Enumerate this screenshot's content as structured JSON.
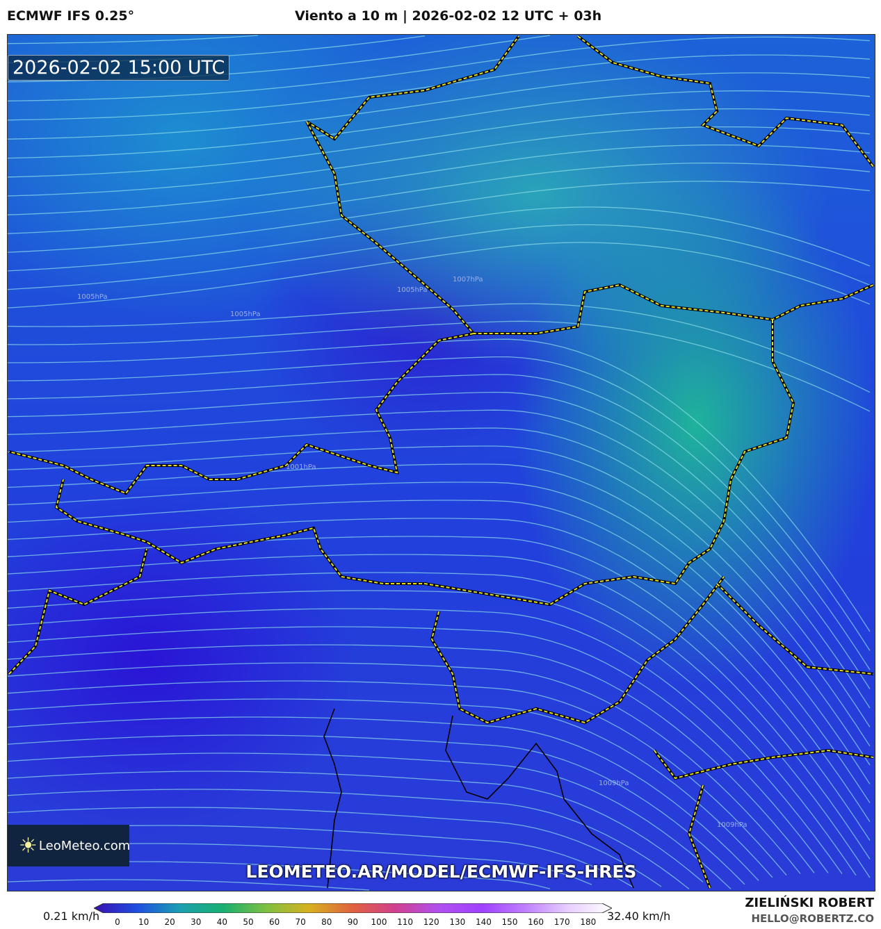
{
  "header": {
    "model": "ECMWF IFS 0.25°",
    "title": "Viento a 10 m | 2026-02-02 12 UTC + 03h"
  },
  "map": {
    "valid_time": "2026-02-02 15:00 UTC",
    "watermark_url": "LEOMETEO.AR/MODEL/ECMWF-IFS-HRES",
    "logo_text": "LeoMeteo.com",
    "isobar_labels": [
      "1005hPa",
      "1007hPa",
      "1005hPa",
      "1001hPa",
      "1005hPa",
      "1009hPa",
      "1009hPa"
    ],
    "colors": {
      "border": "#e8e020",
      "streamline": "#8fe0e8",
      "background_low": "#2a2cd8",
      "background_high": "#1fb39a"
    }
  },
  "colorbar": {
    "min_label": "0.21 km/h",
    "max_label": "32.40 km/h",
    "ticks": [
      "0",
      "10",
      "20",
      "30",
      "40",
      "50",
      "60",
      "70",
      "80",
      "90",
      "100",
      "110",
      "120",
      "130",
      "140",
      "150",
      "160",
      "170",
      "180"
    ],
    "colors": [
      "#3a0fb0",
      "#1f4ee0",
      "#1aa0b0",
      "#18b070",
      "#80c040",
      "#d8b020",
      "#e06040",
      "#d04090",
      "#b050f0",
      "#a040ff",
      "#c080ff",
      "#e8d0ff",
      "#ffffff"
    ]
  },
  "author": {
    "name": "ZIELIŃSKI ROBERT",
    "email": "HELLO@ROBERTZ.CO"
  }
}
